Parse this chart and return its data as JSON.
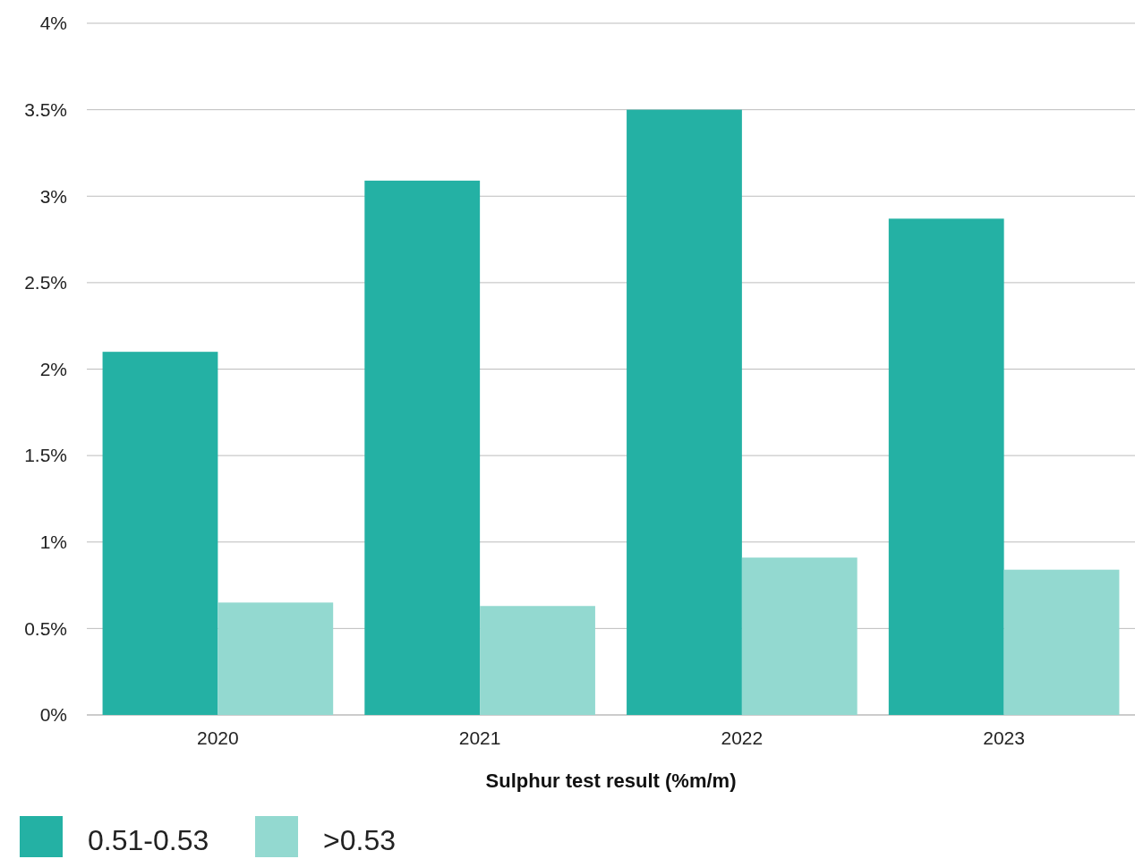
{
  "chart_data": {
    "type": "bar",
    "xlabel": "Sulphur test result (%m/m)",
    "categories": [
      "2020",
      "2021",
      "2022",
      "2023"
    ],
    "series": [
      {
        "name": "0.51-0.53",
        "color": "#24b1a4",
        "values": [
          2.1,
          3.09,
          3.5,
          2.87
        ]
      },
      {
        "name": ">0.53",
        "color": "#93d9d0",
        "values": [
          0.65,
          0.63,
          0.91,
          0.84
        ]
      }
    ],
    "ylim": [
      0,
      4
    ],
    "yticks": [
      {
        "value": 0,
        "label": "0%"
      },
      {
        "value": 0.5,
        "label": "0.5%"
      },
      {
        "value": 1,
        "label": "1%"
      },
      {
        "value": 1.5,
        "label": "1.5%"
      },
      {
        "value": 2,
        "label": "2%"
      },
      {
        "value": 2.5,
        "label": "2.5%"
      },
      {
        "value": 3,
        "label": "3%"
      },
      {
        "value": 3.5,
        "label": "3.5%"
      },
      {
        "value": 4,
        "label": "4%"
      }
    ],
    "grid": "y",
    "legend": "bottom left"
  }
}
